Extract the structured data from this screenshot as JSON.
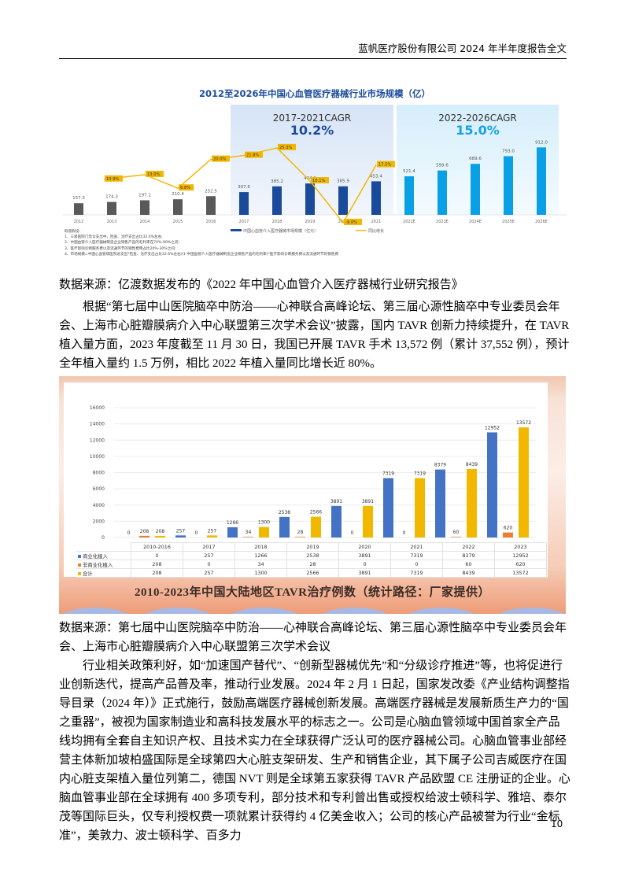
{
  "header": {
    "title": "蓝帆医疗股份有限公司 2024 年半年度报告全文"
  },
  "page_number": "10",
  "chart1": {
    "title": "2012至2026年中国心血管医疗器械行业市场规模（亿）",
    "panels": [
      {
        "label": "2017-2021CAGR",
        "value": "10.2%"
      },
      {
        "label": "2022-2026CAGR",
        "value": "15.0%"
      }
    ],
    "legend": {
      "bar": "中国心血管介入医疗器械市场规模（亿元）",
      "line": "同比增长"
    },
    "footnotes": [
      "取值假设:",
      "1、三级医院门急诊支出中，检查、治疗支出占比32.6%左右;",
      "2、中国血管介入医疗器械制造企业销售产品的毛利率在70%-90%之间;",
      "3、医疗影响诊断服务费以及流通环节的销售费用占比20%-30%之间;",
      "4、市场规模=中国心血管病医院总支出*检查、治疗支出占比32.6%左右/(1-中国血管介入医疗器械制造企业销售产品的毛利率)*医疗影响诊断服务费以及流通环节的销售费"
    ]
  },
  "chart2": {
    "caption": "2010-2023年中国大陆地区TAVR治疗例数（统计路径：厂家提供）",
    "table": {
      "columns": [
        "2010-2016",
        "2017",
        "2018",
        "2019",
        "2020",
        "2021",
        "2022",
        "2023"
      ],
      "rows": [
        {
          "label": "商业化植入",
          "color": "#4472c4",
          "values": [
            "0",
            "257",
            "1266",
            "2538",
            "3891",
            "7319",
            "8379",
            "12952"
          ]
        },
        {
          "label": "非商业化植入",
          "color": "#ed7d31",
          "values": [
            "208",
            "0",
            "34",
            "28",
            "0",
            "0",
            "60",
            "620"
          ]
        },
        {
          "label": "合计",
          "color": "#f2b800",
          "values": [
            "208",
            "257",
            "1300",
            "2566",
            "3891",
            "7319",
            "8439",
            "13572"
          ]
        }
      ]
    }
  },
  "paragraphs": {
    "source1": "数据来源：亿渡数据发布的《2022 年中国心血管介入医疗器械行业研究报告》",
    "p1": "根据“第七届中山医院脑卒中防治——心神联合高峰论坛、第三届心源性脑卒中专业委员会年会、上海市心脏瓣膜病介入中心联盟第三次学术会议”披露，国内 TAVR 创新力持续提升，在 TAVR 植入量方面，2023 年度截至 11 月 30 日，我国已开展 TAVR 手术 13,572 例（累计 37,552 例），预计全年植入量约 1.5 万例，相比 2022 年植入量同比增长近 80%。",
    "source2": "数据来源：第七届中山医院脑卒中防治——心神联合高峰论坛、第三届心源性脑卒中专业委员会年会、上海市心脏瓣膜病介入中心联盟第三次学术会议",
    "p2": "行业相关政策利好，如“加速国产替代”、“创新型器械优先”和“分级诊疗推进”等，也将促进行业创新迭代，提高产品普及率，推动行业发展。2024 年 2 月 1 日起，国家发改委《产业结构调整指导目录（2024 年）》正式施行，鼓励高端医疗器械创新发展。高端医疗器械是发展新质生产力的“国之重器”，被视为国家制造业和高科技发展水平的标志之一。公司是心脑血管领域中国首家全产品线均拥有全套自主知识产权、且技术实力在全球获得广泛认可的医疗器械公司。心脑血管事业部经营主体新加坡柏盛国际是全球第四大心脏支架研发、生产和销售企业，其下属子公司吉威医疗在国内心脏支架植入量位列第二，德国 NVT 则是全球第五家获得 TAVR 产品欧盟 CE 注册证的企业。心脑血管事业部在全球拥有 400 多项专利，部分技术和专利曾出售或授权给波士顿科学、雅培、泰尔茂等国际巨头，仅专利授权费一项就累计获得约 4 亿美金收入；公司的核心产品被誉为行业“金标准”，美敦力、波士顿科学、百多力"
  },
  "chart_data": [
    {
      "type": "bar",
      "title": "2012至2026年中国心血管医疗器械行业市场规模（亿）",
      "categories": [
        "2012",
        "2013",
        "2014",
        "2015",
        "2016",
        "2017",
        "2018",
        "2019",
        "2020",
        "2021",
        "2022E",
        "2023E",
        "2024E",
        "2025E",
        "2026E"
      ],
      "series": [
        {
          "name": "中国心血管介入医疗器械市场规模（亿元）",
          "type": "bar",
          "values": [
            157.3,
            174.3,
            197.1,
            210.4,
            252.5,
            307.6,
            385.2,
            424.1,
            385.9,
            453.4,
            521.4,
            599.6,
            689.6,
            793.0,
            912.0
          ]
        },
        {
          "name": "同比增长",
          "type": "line",
          "unit": "%",
          "values": [
            null,
            10.9,
            13.0,
            6.8,
            20.0,
            21.8,
            25.3,
            10.1,
            -9.0,
            17.5,
            null,
            null,
            null,
            null,
            null
          ]
        }
      ],
      "annotations": [
        "2017-2021CAGR 10.2%",
        "2022-2026CAGR 15.0%"
      ],
      "colors": {
        "hist": "#595959",
        "actual": "#1a4b9b",
        "forecast": "#0aa0e6",
        "line": "#f2b800"
      }
    },
    {
      "type": "bar",
      "title": "2010-2023年中国大陆地区TAVR治疗例数（统计路径：厂家提供）",
      "categories": [
        "2010-2016",
        "2017",
        "2018",
        "2019",
        "2020",
        "2021",
        "2022",
        "2023"
      ],
      "series": [
        {
          "name": "商业化植入",
          "values": [
            0,
            257,
            1266,
            2538,
            3891,
            7319,
            8379,
            12952
          ]
        },
        {
          "name": "非商业化植入",
          "values": [
            208,
            0,
            34,
            28,
            0,
            0,
            60,
            620
          ]
        },
        {
          "name": "合计",
          "values": [
            208,
            257,
            1300,
            2566,
            3891,
            7319,
            8439,
            13572
          ]
        }
      ],
      "ylim": [
        0,
        16000
      ],
      "yticks": [
        0,
        2000,
        4000,
        6000,
        8000,
        10000,
        12000,
        14000,
        16000
      ],
      "grid": true
    }
  ]
}
